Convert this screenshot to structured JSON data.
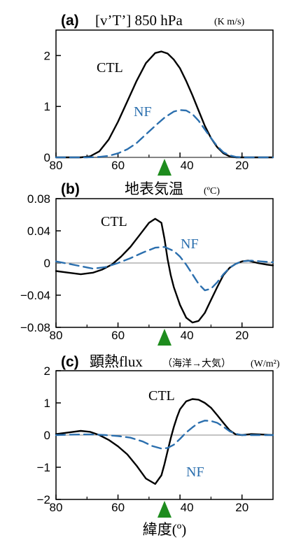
{
  "chart_data": [
    {
      "type": "line",
      "panel": "(a)",
      "title": "[v’T’] 850 hPa",
      "units": "(K m/s)",
      "xlim": [
        80,
        10
      ],
      "ylim": [
        0,
        2.5
      ],
      "xticks": [
        "80",
        "60",
        "40",
        "20"
      ],
      "yticks": [
        "0",
        "1",
        "2"
      ],
      "marker_x": 46,
      "series": [
        {
          "name": "CTL",
          "color": "#000000",
          "dash": "solid",
          "x": [
            80,
            75,
            72,
            69,
            66,
            63,
            60,
            57,
            54,
            51,
            48,
            46,
            44,
            42,
            40,
            38,
            36,
            34,
            32,
            30,
            28,
            26,
            24,
            22,
            20,
            18,
            15,
            10
          ],
          "y": [
            0,
            0,
            0,
            0.02,
            0.12,
            0.35,
            0.7,
            1.1,
            1.5,
            1.85,
            2.05,
            2.08,
            2.04,
            1.92,
            1.75,
            1.5,
            1.22,
            0.92,
            0.62,
            0.38,
            0.2,
            0.08,
            0.02,
            0,
            0,
            0,
            0,
            0
          ]
        },
        {
          "name": "NF",
          "color": "#2b6fae",
          "dash": "dashed",
          "x": [
            80,
            70,
            66,
            63,
            60,
            57,
            54,
            51,
            48,
            45,
            42,
            40,
            38,
            36,
            34,
            32,
            30,
            28,
            26,
            24,
            22,
            20,
            15,
            10
          ],
          "y": [
            0,
            0,
            0.01,
            0.03,
            0.08,
            0.16,
            0.28,
            0.45,
            0.62,
            0.78,
            0.9,
            0.93,
            0.92,
            0.85,
            0.72,
            0.55,
            0.38,
            0.22,
            0.1,
            0.04,
            0.01,
            0,
            0,
            0
          ]
        }
      ]
    },
    {
      "type": "line",
      "panel": "(b)",
      "title": "地表気温",
      "units": "(ºC)",
      "xlim": [
        80,
        10
      ],
      "ylim": [
        -0.08,
        0.08
      ],
      "xticks": [
        "80",
        "60",
        "40",
        "20"
      ],
      "yticks": [
        "0.08",
        "0.04",
        "0",
        "−0.04",
        "−0.08"
      ],
      "marker_x": 46,
      "series": [
        {
          "name": "CTL",
          "color": "#000000",
          "dash": "solid",
          "x": [
            80,
            76,
            72,
            68,
            65,
            62,
            59,
            56,
            53,
            50,
            48,
            46,
            45,
            44,
            43,
            42,
            40,
            38,
            36,
            34,
            32,
            30,
            28,
            26,
            24,
            22,
            20,
            18,
            15,
            12,
            10
          ],
          "y": [
            -0.01,
            -0.012,
            -0.014,
            -0.012,
            -0.008,
            -0.002,
            0.008,
            0.02,
            0.035,
            0.05,
            0.055,
            0.05,
            0.03,
            0.005,
            -0.015,
            -0.03,
            -0.052,
            -0.068,
            -0.074,
            -0.072,
            -0.062,
            -0.046,
            -0.03,
            -0.015,
            -0.006,
            -0.001,
            0.002,
            0.003,
            0.0,
            -0.002,
            -0.003
          ]
        },
        {
          "name": "NF",
          "color": "#2b6fae",
          "dash": "dashed",
          "x": [
            80,
            76,
            72,
            68,
            64,
            60,
            56,
            52,
            48,
            45,
            42,
            40,
            38,
            36,
            34,
            32,
            30,
            28,
            26,
            24,
            22,
            20,
            17,
            14,
            10
          ],
          "y": [
            0.002,
            -0.001,
            -0.004,
            -0.007,
            -0.005,
            0.0,
            0.006,
            0.013,
            0.019,
            0.02,
            0.015,
            0.008,
            -0.002,
            -0.014,
            -0.026,
            -0.034,
            -0.032,
            -0.024,
            -0.014,
            -0.006,
            -0.001,
            0.002,
            0.003,
            0.002,
            0.001
          ]
        }
      ]
    },
    {
      "type": "line",
      "panel": "(c)",
      "title": "顕熱flux",
      "subtitle": "（海洋→大気）",
      "units": "(W/m²)",
      "xlabel": "緯度(º)",
      "xlim": [
        80,
        10
      ],
      "ylim": [
        -2,
        2
      ],
      "xticks": [
        "80",
        "60",
        "40",
        "20"
      ],
      "yticks": [
        "2",
        "1",
        "0",
        "−1",
        "−2"
      ],
      "marker_x": 46,
      "series": [
        {
          "name": "CTL",
          "color": "#000000",
          "dash": "solid",
          "x": [
            80,
            76,
            72,
            69,
            66,
            63,
            60,
            57,
            54,
            51,
            48,
            46,
            45,
            44,
            43,
            42,
            41,
            40,
            38,
            36,
            34,
            32,
            30,
            28,
            26,
            24,
            22,
            20,
            17,
            14,
            10
          ],
          "y": [
            0.03,
            0.08,
            0.13,
            0.1,
            0.0,
            -0.15,
            -0.35,
            -0.6,
            -0.95,
            -1.35,
            -1.52,
            -1.25,
            -0.9,
            -0.5,
            -0.1,
            0.25,
            0.55,
            0.8,
            1.05,
            1.12,
            1.1,
            1.0,
            0.85,
            0.62,
            0.38,
            0.15,
            0.02,
            0.0,
            0.03,
            0.02,
            0.0
          ]
        },
        {
          "name": "NF",
          "color": "#2b6fae",
          "dash": "dashed",
          "x": [
            80,
            76,
            72,
            68,
            64,
            60,
            56,
            52,
            49,
            46,
            44,
            42,
            40,
            38,
            36,
            34,
            32,
            30,
            28,
            26,
            24,
            22,
            20,
            16,
            12,
            10
          ],
          "y": [
            0.0,
            0.01,
            0.02,
            0.02,
            0.0,
            -0.03,
            -0.08,
            -0.2,
            -0.34,
            -0.42,
            -0.4,
            -0.3,
            -0.12,
            0.08,
            0.24,
            0.38,
            0.45,
            0.44,
            0.38,
            0.26,
            0.12,
            0.04,
            0.0,
            0.0,
            0.0,
            0.0
          ]
        }
      ]
    }
  ]
}
